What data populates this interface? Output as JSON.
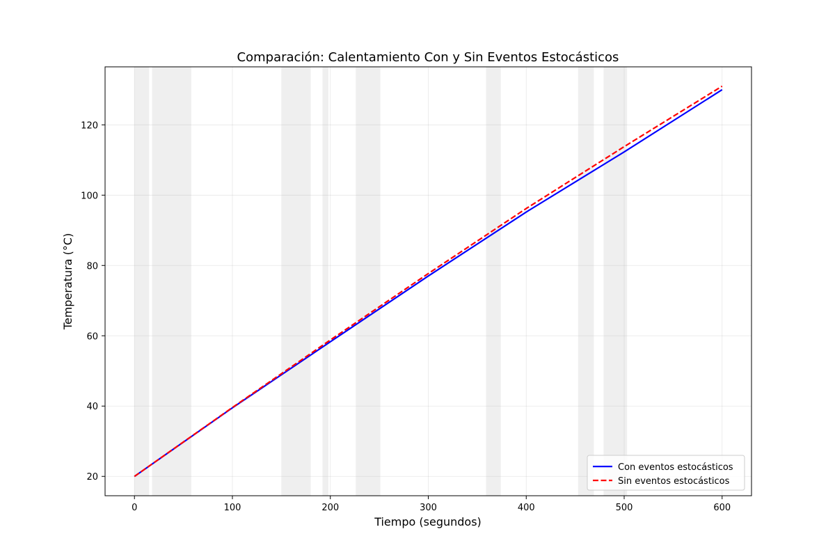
{
  "chart_data": {
    "type": "line",
    "title": "Comparación: Calentamiento Con y Sin Eventos Estocásticos",
    "xlabel": "Tiempo (segundos)",
    "ylabel": "Temperatura (°C)",
    "xlim": [
      -30,
      630
    ],
    "ylim": [
      14.5,
      136.5
    ],
    "xticks": [
      0,
      100,
      200,
      300,
      400,
      500,
      600
    ],
    "yticks": [
      20,
      40,
      60,
      80,
      100,
      120
    ],
    "grid": true,
    "legend_position": "lower-right",
    "shaded_intervals": [
      [
        0,
        15
      ],
      [
        18,
        58
      ],
      [
        150,
        180
      ],
      [
        192,
        198
      ],
      [
        226,
        251
      ],
      [
        359,
        374
      ],
      [
        453,
        469
      ],
      [
        479,
        503
      ]
    ],
    "shaded_color": "#e6e6e6",
    "series": [
      {
        "name": "Con eventos estocásticos",
        "color": "#0000ff",
        "style": "solid",
        "x": [
          0,
          100,
          200,
          300,
          400,
          500,
          600
        ],
        "values": [
          20,
          39.5,
          58.3,
          77,
          95.2,
          112.3,
          130
        ]
      },
      {
        "name": "Sin eventos estocásticos",
        "color": "#ff0000",
        "style": "dashed",
        "x": [
          0,
          100,
          200,
          300,
          400,
          500,
          600
        ],
        "values": [
          20,
          39.6,
          58.8,
          77.7,
          96.2,
          113.8,
          131
        ]
      }
    ]
  }
}
